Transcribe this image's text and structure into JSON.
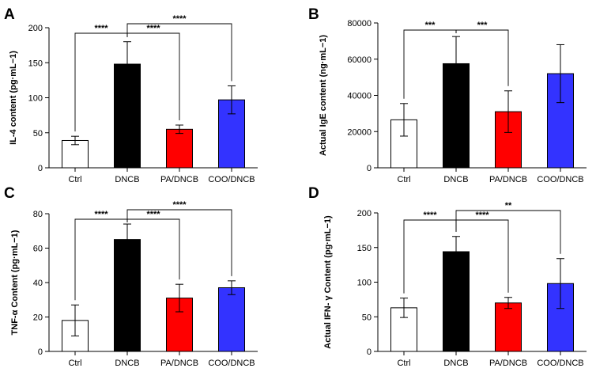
{
  "colors": {
    "Ctrl": "#ffffff",
    "DNCB": "#000000",
    "PA/DNCB": "#ff0000",
    "COO/DNCB": "#3333ff"
  },
  "chart_data": [
    {
      "panel": "A",
      "type": "bar",
      "ylabel": "IL-4 content (pg·mL−1)",
      "categories": [
        "Ctrl",
        "DNCB",
        "PA/DNCB",
        "COO/DNCB"
      ],
      "values": [
        39,
        148,
        55,
        97
      ],
      "errors": [
        6,
        32,
        6,
        20
      ],
      "ylim": [
        0,
        200
      ],
      "yticks": [
        "0",
        "50",
        "100",
        "150",
        "200"
      ],
      "significance": [
        {
          "from": "Ctrl",
          "to": "DNCB",
          "label": "****"
        },
        {
          "from": "DNCB",
          "to": "PA/DNCB",
          "label": "****"
        },
        {
          "from": "DNCB",
          "to": "COO/DNCB",
          "label": "****"
        }
      ]
    },
    {
      "panel": "B",
      "type": "bar",
      "ylabel": "Actual IgE content (ng·mL−1)",
      "categories": [
        "Ctrl",
        "DNCB",
        "PA/DNCB",
        "COO/DNCB"
      ],
      "values": [
        26500,
        57500,
        31000,
        52000
      ],
      "errors": [
        9000,
        15000,
        11500,
        16000
      ],
      "ylim": [
        0,
        80000
      ],
      "yticks": [
        "0",
        "20000",
        "40000",
        "60000",
        "80000"
      ],
      "significance": [
        {
          "from": "Ctrl",
          "to": "DNCB",
          "label": "***"
        },
        {
          "from": "DNCB",
          "to": "PA/DNCB",
          "label": "***"
        }
      ]
    },
    {
      "panel": "C",
      "type": "bar",
      "ylabel": "TNF-α Content (pg·mL−1)",
      "categories": [
        "Ctrl",
        "DNCB",
        "PA/DNCB",
        "COO/DNCB"
      ],
      "values": [
        18,
        65,
        31,
        37
      ],
      "errors": [
        9,
        9,
        8,
        4
      ],
      "ylim": [
        0,
        80
      ],
      "yticks": [
        "0",
        "20",
        "40",
        "60",
        "80"
      ],
      "significance": [
        {
          "from": "Ctrl",
          "to": "DNCB",
          "label": "****"
        },
        {
          "from": "DNCB",
          "to": "PA/DNCB",
          "label": "****"
        },
        {
          "from": "DNCB",
          "to": "COO/DNCB",
          "label": "****"
        }
      ]
    },
    {
      "panel": "D",
      "type": "bar",
      "ylabel": "Actual IFN- γ Content (pg·mL−1)",
      "categories": [
        "Ctrl",
        "DNCB",
        "PA/DNCB",
        "COO/DNCB"
      ],
      "values": [
        63,
        144,
        70,
        98
      ],
      "errors": [
        14,
        22,
        8,
        36
      ],
      "ylim": [
        0,
        200
      ],
      "yticks": [
        "0",
        "50",
        "100",
        "150",
        "200"
      ],
      "significance": [
        {
          "from": "Ctrl",
          "to": "DNCB",
          "label": "****"
        },
        {
          "from": "DNCB",
          "to": "PA/DNCB",
          "label": "****"
        },
        {
          "from": "DNCB",
          "to": "COO/DNCB",
          "label": "**"
        }
      ]
    }
  ]
}
